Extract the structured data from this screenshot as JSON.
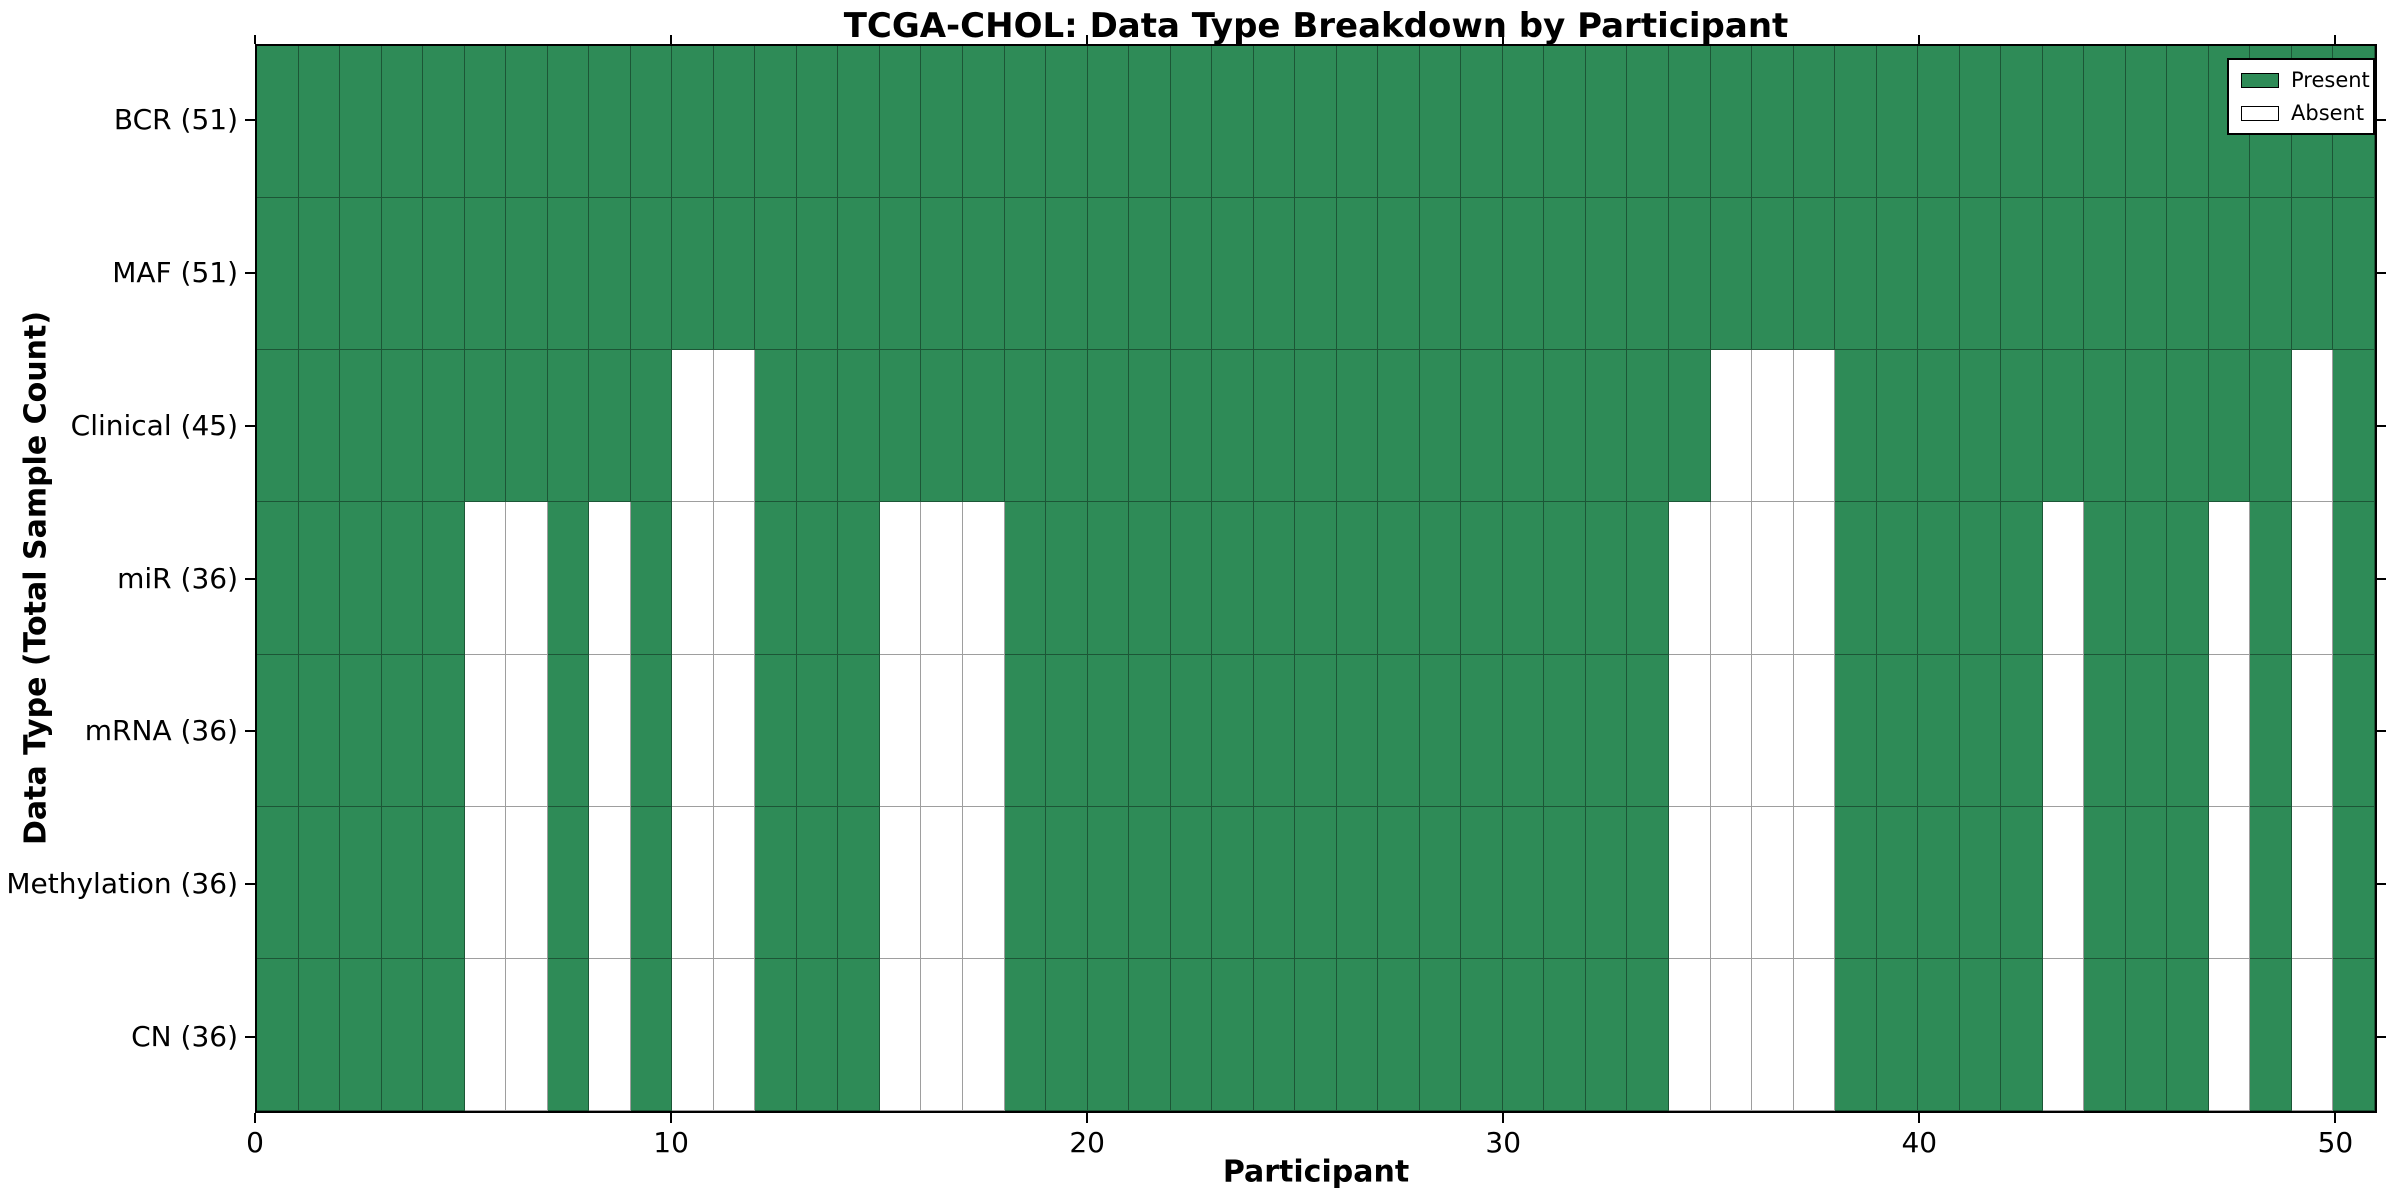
{
  "chart_data": {
    "type": "heatmap",
    "title": "TCGA-CHOL: Data Type Breakdown by Participant",
    "xlabel": "Participant",
    "ylabel": "Data Type (Total Sample Count)",
    "n_participants": 51,
    "x_range": [
      0,
      51
    ],
    "x_ticks": [
      0,
      10,
      20,
      30,
      40,
      50
    ],
    "grid": false,
    "rows": [
      {
        "label": "BCR (51)",
        "total": 51,
        "absent_participants": []
      },
      {
        "label": "MAF (51)",
        "total": 51,
        "absent_participants": []
      },
      {
        "label": "Clinical (45)",
        "total": 45,
        "absent_participants": [
          10,
          11,
          35,
          36,
          37,
          49
        ]
      },
      {
        "label": "miR (36)",
        "total": 36,
        "absent_participants": [
          5,
          6,
          8,
          10,
          11,
          15,
          16,
          17,
          34,
          35,
          36,
          37,
          43,
          47,
          49
        ]
      },
      {
        "label": "mRNA (36)",
        "total": 36,
        "absent_participants": [
          5,
          6,
          8,
          10,
          11,
          15,
          16,
          17,
          34,
          35,
          36,
          37,
          43,
          47,
          49
        ]
      },
      {
        "label": "Methylation (36)",
        "total": 36,
        "absent_participants": [
          5,
          6,
          8,
          10,
          11,
          15,
          16,
          17,
          34,
          35,
          36,
          37,
          43,
          47,
          49
        ]
      },
      {
        "label": "CN (36)",
        "total": 36,
        "absent_participants": [
          5,
          6,
          8,
          10,
          11,
          15,
          16,
          17,
          34,
          35,
          36,
          37,
          43,
          47,
          49
        ]
      }
    ],
    "legend": {
      "position": "upper right",
      "entries": [
        {
          "label": "Present",
          "color": "#2E8B57"
        },
        {
          "label": "Absent",
          "color": "#FFFFFF"
        }
      ]
    },
    "colors": {
      "present": "#2E8B57",
      "absent": "#FFFFFF",
      "spine": "#000000"
    }
  }
}
